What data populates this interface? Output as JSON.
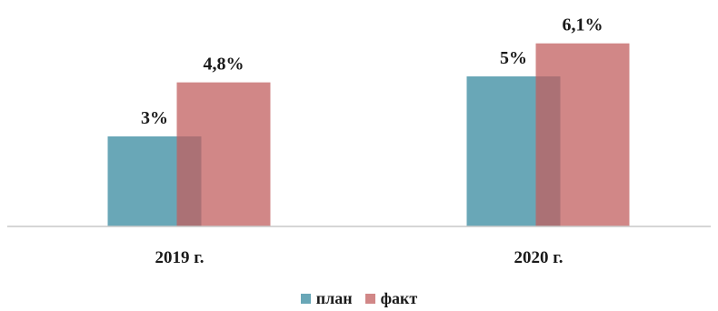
{
  "chart_data": {
    "type": "bar",
    "categories": [
      "2019 г.",
      "2020 г."
    ],
    "series": [
      {
        "name": "план",
        "values": [
          3,
          5
        ],
        "labels": [
          "3%",
          "5%"
        ],
        "color": "#4f98aa"
      },
      {
        "name": "факт",
        "values": [
          4.8,
          6.1
        ],
        "labels": [
          "4,8%",
          "6,1%"
        ],
        "color": "#c25f5f"
      }
    ],
    "title": "",
    "xlabel": "",
    "ylabel": "",
    "ylim": [
      0,
      6.5
    ],
    "grid": false,
    "bars_overlap": true,
    "legend_position": "bottom"
  }
}
